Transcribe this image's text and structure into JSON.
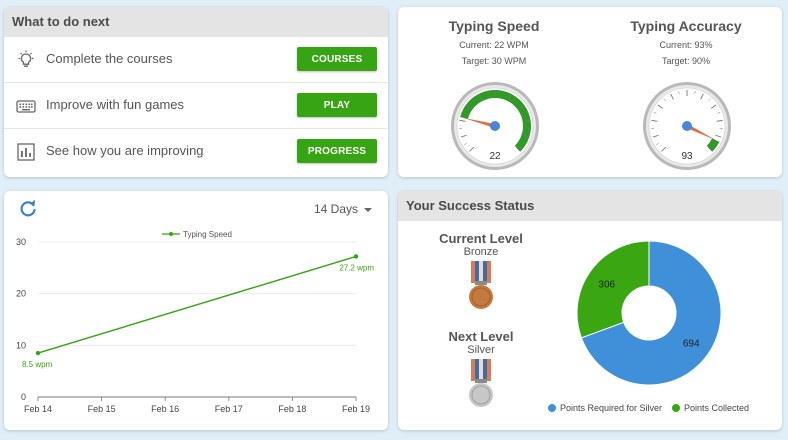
{
  "todo": {
    "title": "What to do next",
    "items": [
      {
        "text": "Complete the courses",
        "button": "COURSES",
        "icon": "lightbulb-icon"
      },
      {
        "text": "Improve with fun games",
        "button": "PLAY",
        "icon": "keyboard-icon"
      },
      {
        "text": "See how you are improving",
        "button": "PROGRESS",
        "icon": "bar-chart-icon"
      }
    ]
  },
  "gauges": {
    "speed": {
      "title": "Typing Speed",
      "current": "Current: 22 WPM",
      "target": "Target: 30 WPM",
      "value": 22,
      "readout": "22"
    },
    "accuracy": {
      "title": "Typing Accuracy",
      "current": "Current: 93%",
      "target": "Target: 90%",
      "value": 93,
      "readout": "93"
    },
    "colors": {
      "band": "#2e9b25",
      "needle": "#e06c4a",
      "hub": "#4a86d8"
    }
  },
  "progress_chart": {
    "range_label": "14 Days",
    "accent": "#37a513"
  },
  "success": {
    "title": "Your Success Status",
    "current_level_label": "Current Level",
    "current_level": "Bronze",
    "next_level_label": "Next Level",
    "next_level": "Silver",
    "legend": [
      "Points Required for Silver",
      "Points Collected"
    ],
    "colors": {
      "required": "#3f8fd9",
      "collected": "#3aa712"
    }
  },
  "chart_data": [
    {
      "type": "line",
      "series": [
        {
          "name": "Typing Speed",
          "x": [
            "Feb 14",
            "Feb 19"
          ],
          "values": [
            8.5,
            27.2
          ]
        }
      ],
      "data_labels": [
        "8.5 wpm",
        "27.2 wpm"
      ],
      "x_ticks": [
        "Feb 14",
        "Feb 15",
        "Feb 16",
        "Feb 17",
        "Feb 18",
        "Feb 19"
      ],
      "y_ticks": [
        0,
        10,
        20,
        30
      ],
      "ylim": [
        0,
        30
      ],
      "legend": "top-center",
      "grid": true
    },
    {
      "type": "pie",
      "labels": [
        "Points Required for Silver",
        "Points Collected"
      ],
      "values": [
        694,
        306
      ],
      "donut": true,
      "legend": "bottom"
    }
  ]
}
